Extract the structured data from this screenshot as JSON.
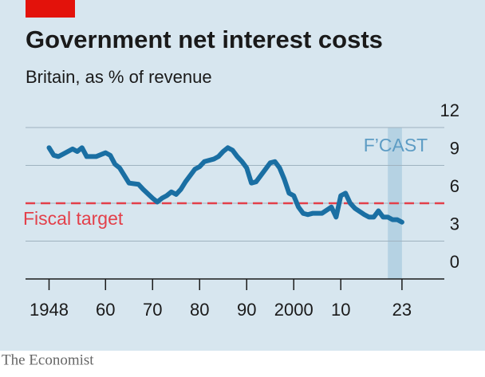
{
  "chart_data": {
    "type": "line",
    "title": "Government net interest costs",
    "subtitle": "Britain, as % of revenue",
    "source": "The Economist",
    "x": [
      1948,
      1949,
      1950,
      1951,
      1953,
      1954,
      1955,
      1956,
      1958,
      1960,
      1961,
      1962,
      1963,
      1965,
      1967,
      1968,
      1970,
      1971,
      1972,
      1973,
      1974,
      1975,
      1976,
      1977,
      1979,
      1980,
      1981,
      1983,
      1984,
      1985,
      1986,
      1987,
      1988,
      1989,
      1990,
      1991,
      1992,
      1993,
      1995,
      1996,
      1997,
      1998,
      1999,
      2000,
      2001,
      2002,
      2003,
      2004,
      2006,
      2008,
      2009,
      2010,
      2011,
      2012,
      2013,
      2015,
      2016,
      2017,
      2018,
      2019,
      2020,
      2021,
      2022,
      2023
    ],
    "series": [
      {
        "color": "#1a6fa3",
        "values": [
          10.4,
          9.8,
          9.7,
          9.9,
          10.3,
          10.1,
          10.4,
          9.7,
          9.7,
          10.0,
          9.8,
          9.1,
          8.8,
          7.6,
          7.5,
          7.1,
          6.4,
          6.1,
          6.4,
          6.6,
          6.9,
          6.7,
          7.1,
          7.7,
          8.7,
          8.9,
          9.3,
          9.5,
          9.7,
          10.1,
          10.4,
          10.2,
          9.7,
          9.3,
          8.8,
          7.6,
          7.7,
          8.2,
          9.2,
          9.3,
          8.8,
          7.9,
          6.8,
          6.6,
          5.7,
          5.2,
          5.1,
          5.2,
          5.2,
          5.7,
          4.9,
          6.6,
          6.8,
          6.0,
          5.6,
          5.1,
          4.9,
          4.9,
          5.4,
          4.9,
          4.9,
          4.7,
          4.7,
          4.5
        ]
      }
    ],
    "xlim": [
      1943,
      2032
    ],
    "xticks": [
      {
        "value": 1948,
        "label": "1948"
      },
      {
        "value": 1960,
        "label": "60"
      },
      {
        "value": 1970,
        "label": "70"
      },
      {
        "value": 1980,
        "label": "80"
      },
      {
        "value": 1990,
        "label": "90"
      },
      2000,
      {
        "value": 2010,
        "label": "10"
      },
      {
        "value": 2023,
        "label": "23"
      }
    ],
    "ylim": [
      0,
      12
    ],
    "yticks": [
      0,
      3,
      6,
      9,
      12
    ],
    "grid": true,
    "target": {
      "value": 6,
      "label": "Fiscal target",
      "color": "#e3404a"
    },
    "forecast": {
      "label": "F’CAST",
      "range": [
        2020,
        2023
      ],
      "color": "#b5d2e3"
    }
  }
}
